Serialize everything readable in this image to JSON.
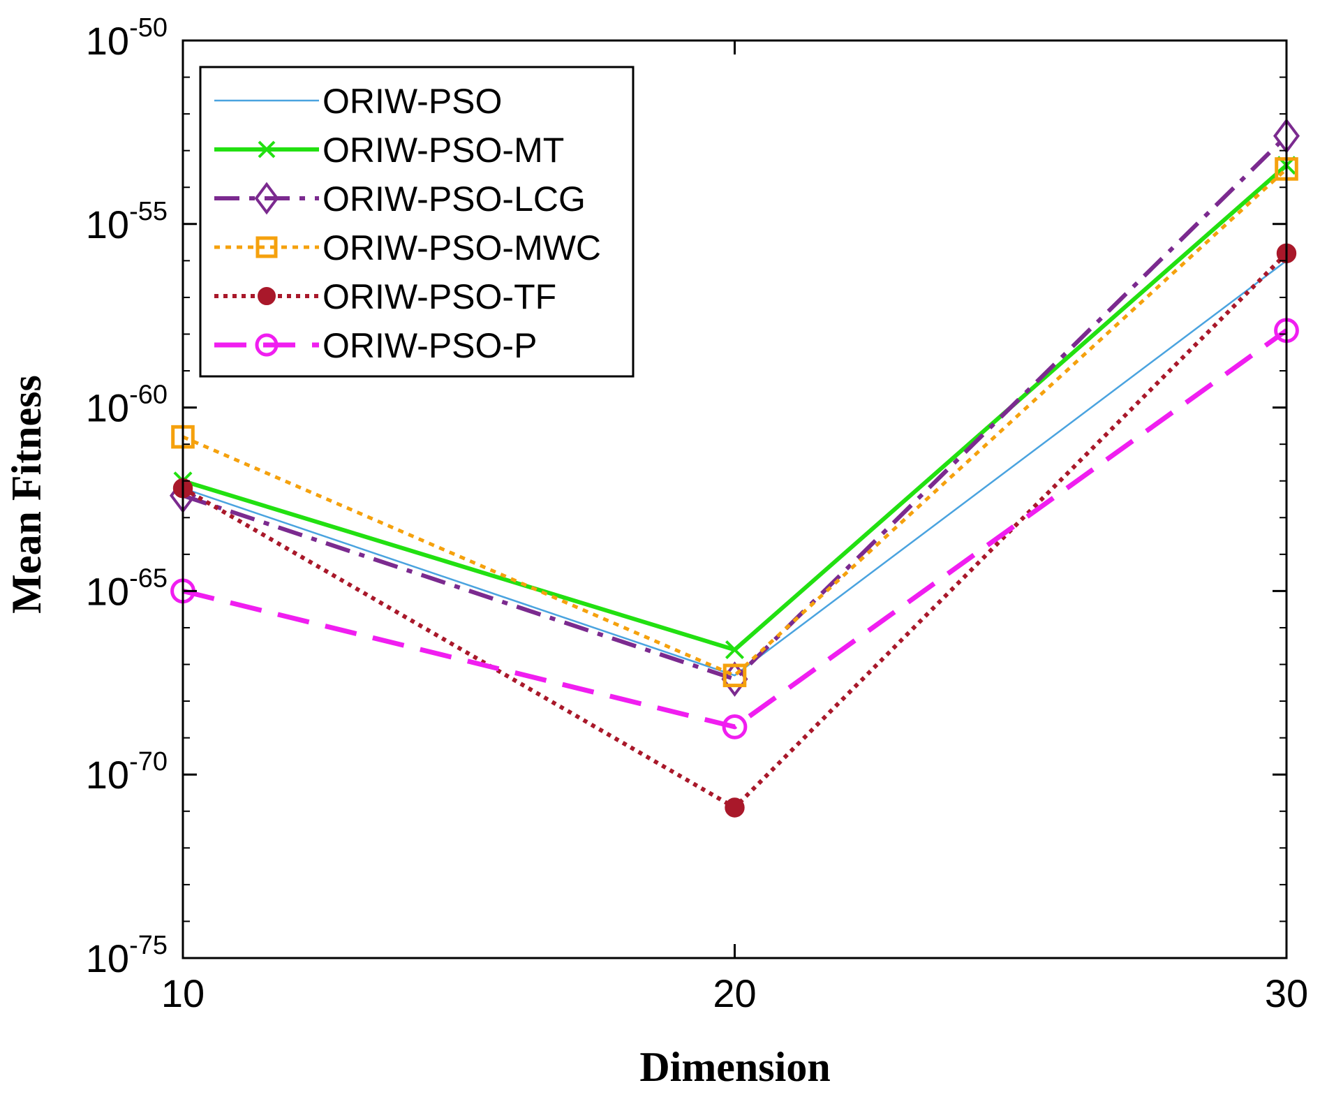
{
  "chart_data": {
    "type": "line",
    "title": "",
    "xlabel": "Dimension",
    "ylabel": "Mean Fitness",
    "yscale": "log",
    "x": [
      10,
      20,
      30
    ],
    "xlim": [
      10,
      30
    ],
    "ylim_exponent": [
      -75,
      -50
    ],
    "xticks": [
      "10",
      "20",
      "30"
    ],
    "yticks": [
      {
        "base": "10",
        "exp": "-75",
        "value": -75
      },
      {
        "base": "10",
        "exp": "-70",
        "value": -70
      },
      {
        "base": "10",
        "exp": "-65",
        "value": -65
      },
      {
        "base": "10",
        "exp": "-60",
        "value": -60
      },
      {
        "base": "10",
        "exp": "-55",
        "value": -55
      },
      {
        "base": "10",
        "exp": "-50",
        "value": -50
      }
    ],
    "legend_position": "top-left",
    "series": [
      {
        "name": "ORIW-PSO",
        "log10_values": [
          -62.2,
          -67.3,
          -56.0
        ],
        "color": "#4aa3df",
        "dash": "",
        "width": 2.5,
        "marker": "none"
      },
      {
        "name": "ORIW-PSO-MT",
        "log10_values": [
          -62.0,
          -66.6,
          -53.4
        ],
        "color": "#22e011",
        "dash": "",
        "width": 6,
        "marker": "x"
      },
      {
        "name": "ORIW-PSO-LCG",
        "log10_values": [
          -62.4,
          -67.4,
          -52.6
        ],
        "color": "#7b2a8f",
        "dash": "36 14 8 14",
        "width": 6,
        "marker": "diamond"
      },
      {
        "name": "ORIW-PSO-MWC",
        "log10_values": [
          -60.8,
          -67.3,
          -53.5
        ],
        "color": "#f5a10d",
        "dash": "8 8",
        "width": 5,
        "marker": "square"
      },
      {
        "name": "ORIW-PSO-TF",
        "log10_values": [
          -62.2,
          -70.9,
          -55.8
        ],
        "color": "#a9182a",
        "dash": "6 7",
        "width": 6,
        "marker": "dot"
      },
      {
        "name": "ORIW-PSO-P",
        "log10_values": [
          -65.0,
          -68.7,
          -57.9
        ],
        "color": "#f01ef0",
        "dash": "46 24",
        "width": 7,
        "marker": "circle"
      }
    ]
  }
}
